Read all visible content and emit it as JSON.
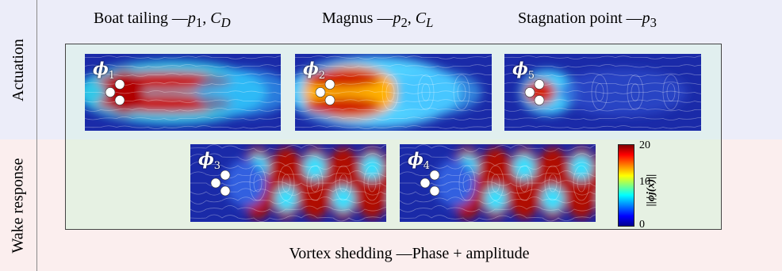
{
  "rows": {
    "actuation": "Actuation",
    "wake_response": "Wake response"
  },
  "columns": [
    {
      "text": "Boat tailing —",
      "var1": "p",
      "sub1": "1",
      "sep": ", ",
      "var2": "C",
      "sub2": "D"
    },
    {
      "text": "Magnus —",
      "var1": "p",
      "sub1": "2",
      "sep": ", ",
      "var2": "C",
      "sub2": "L"
    },
    {
      "text": "Stagnation point —",
      "var1": "p",
      "sub1": "3",
      "sep": "",
      "var2": "",
      "sub2": ""
    }
  ],
  "modes": [
    {
      "symbol": "ϕ",
      "index": "1",
      "pattern": "boat-tailing"
    },
    {
      "symbol": "ϕ",
      "index": "2",
      "pattern": "magnus"
    },
    {
      "symbol": "ϕ",
      "index": "5",
      "pattern": "stagnation"
    },
    {
      "symbol": "ϕ",
      "index": "3",
      "pattern": "shedding"
    },
    {
      "symbol": "ϕ",
      "index": "4",
      "pattern": "shedding"
    }
  ],
  "colorbar": {
    "max": "20",
    "mid": "10",
    "min": "0",
    "label": "||ϕj(x)||",
    "colormap": "jet"
  },
  "bottom_caption": "Vortex shedding —Phase + amplitude"
}
